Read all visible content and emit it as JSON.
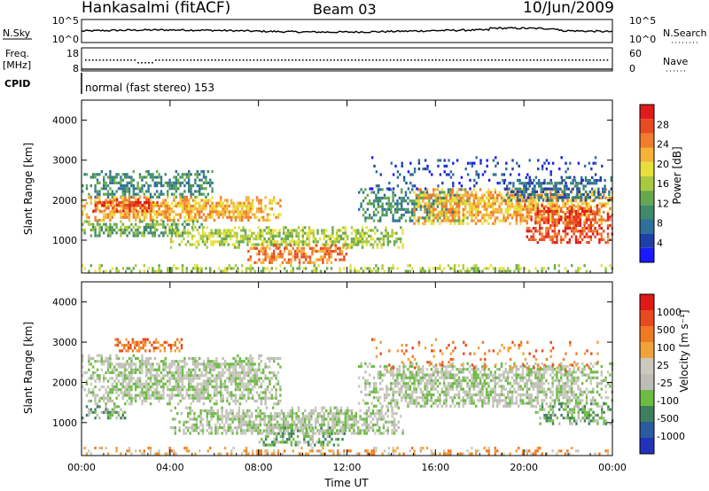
{
  "header": {
    "station": "Hankasalmi (fitACF)",
    "beam": "Beam 03",
    "date": "10/Jun/2009"
  },
  "top_panels": {
    "noise": {
      "left_label": "N.Sky",
      "right_label": "N.Search",
      "left_ticks": [
        "10^5",
        "10^0"
      ],
      "right_ticks": [
        "10^5",
        "10^0"
      ]
    },
    "freq": {
      "left_label_1": "Freq.",
      "left_label_2": "[MHz]",
      "right_label": "Nave",
      "left_ticks": [
        "18",
        "8"
      ],
      "right_ticks": [
        "60",
        "0"
      ]
    },
    "cpid": {
      "label": "CPID",
      "text": "normal (fast stereo) 153"
    }
  },
  "chart_data": [
    {
      "type": "heatmap",
      "name": "power",
      "ylabel": "Slant Range [km]",
      "ylim": [
        180,
        4500
      ],
      "yticks": [
        1000,
        2000,
        3000,
        4000
      ],
      "xlim": [
        0,
        24
      ],
      "colorbar": {
        "label": "Power [dB]",
        "ticks": [
          "4",
          "8",
          "12",
          "16",
          "20",
          "24",
          "28"
        ],
        "colors": [
          "#1a1aff",
          "#1f3fa8",
          "#2f6f9b",
          "#3f8a6a",
          "#67a84f",
          "#a9c940",
          "#e8e03a",
          "#f5b33a",
          "#f07d2c",
          "#e84a22",
          "#e01b1b"
        ]
      },
      "bands": [
        {
          "t": [
            0.0,
            6.0
          ],
          "r": [
            2050,
            2750
          ],
          "level": 3,
          "density": 0.55
        },
        {
          "t": [
            0.0,
            9.0
          ],
          "r": [
            1500,
            2100
          ],
          "level": 7,
          "density": 0.75
        },
        {
          "t": [
            0.5,
            3.5
          ],
          "r": [
            1750,
            2050
          ],
          "level": 9,
          "density": 0.7
        },
        {
          "t": [
            0.0,
            5.5
          ],
          "r": [
            1100,
            1500
          ],
          "level": 4,
          "density": 0.6
        },
        {
          "t": [
            4.0,
            14.5
          ],
          "r": [
            850,
            1350
          ],
          "level": 5,
          "density": 0.65
        },
        {
          "t": [
            7.5,
            12.0
          ],
          "r": [
            450,
            900
          ],
          "level": 8,
          "density": 0.6
        },
        {
          "t": [
            12.5,
            17.5
          ],
          "r": [
            1500,
            2300
          ],
          "level": 3,
          "density": 0.55
        },
        {
          "t": [
            15.0,
            24.0
          ],
          "r": [
            1400,
            2300
          ],
          "level": 7,
          "density": 0.7
        },
        {
          "t": [
            20.0,
            24.0
          ],
          "r": [
            950,
            1900
          ],
          "level": 9,
          "density": 0.6
        },
        {
          "t": [
            13.0,
            23.5
          ],
          "r": [
            2300,
            3100
          ],
          "level": 1,
          "density": 0.15
        },
        {
          "t": [
            19.0,
            24.0
          ],
          "r": [
            2000,
            2600
          ],
          "level": 2,
          "density": 0.55
        },
        {
          "t": [
            0.0,
            24.0
          ],
          "r": [
            200,
            400
          ],
          "level": 5,
          "density": 0.45
        }
      ]
    },
    {
      "type": "heatmap",
      "name": "velocity",
      "ylabel": "Slant Range [km]",
      "xlabel": "Time UT",
      "ylim": [
        180,
        4500
      ],
      "yticks": [
        1000,
        2000,
        3000,
        4000
      ],
      "xlim": [
        0,
        24
      ],
      "xticks": [
        "00:00",
        "04:00",
        "08:00",
        "12:00",
        "16:00",
        "20:00",
        "00:00"
      ],
      "colorbar": {
        "label": "Velocity [m s⁻¹]",
        "ticks": [
          "1000",
          "500",
          "100",
          "25",
          "-25",
          "-100",
          "-500",
          "-1000"
        ],
        "colors": [
          "#2233bb",
          "#2c5a9e",
          "#3f7f5f",
          "#6dbb44",
          "#bdbdb5",
          "#c9c9bd",
          "#f0a33b",
          "#f07a24",
          "#e84a20",
          "#e01818"
        ]
      },
      "bands": [
        {
          "t": [
            0.0,
            9.0
          ],
          "r": [
            1500,
            2700
          ],
          "level": 4,
          "density": 0.7
        },
        {
          "t": [
            4.0,
            14.5
          ],
          "r": [
            700,
            1400
          ],
          "level": 4,
          "density": 0.7
        },
        {
          "t": [
            12.5,
            24.0
          ],
          "r": [
            1400,
            2500
          ],
          "level": 4,
          "density": 0.65
        },
        {
          "t": [
            1.5,
            4.5
          ],
          "r": [
            2750,
            3100
          ],
          "level": 7,
          "density": 0.6
        },
        {
          "t": [
            0.0,
            2.0
          ],
          "r": [
            1100,
            1500
          ],
          "level": 3,
          "density": 0.55
        },
        {
          "t": [
            20.5,
            24.0
          ],
          "r": [
            1000,
            1500
          ],
          "level": 3,
          "density": 0.6
        },
        {
          "t": [
            8.0,
            12.0
          ],
          "r": [
            450,
            900
          ],
          "level": 3,
          "density": 0.5
        },
        {
          "t": [
            0.0,
            24.0
          ],
          "r": [
            200,
            400
          ],
          "level": 6,
          "density": 0.35
        },
        {
          "t": [
            13.0,
            23.5
          ],
          "r": [
            2300,
            3100
          ],
          "level": 7,
          "density": 0.12
        }
      ]
    }
  ]
}
